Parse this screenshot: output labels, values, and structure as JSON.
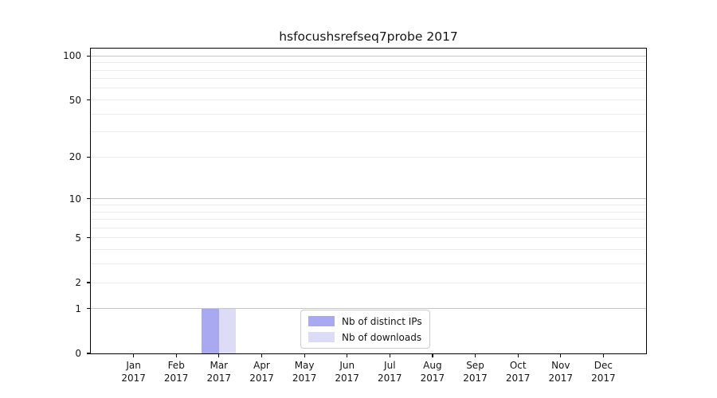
{
  "figure": {
    "background": "#ffffff",
    "text_color": "#151515",
    "axis_color": "#000000"
  },
  "chart_data": {
    "type": "bar",
    "title": "hsfocushsrefseq7probe 2017",
    "categories": [
      "Jan",
      "Feb",
      "Mar",
      "Apr",
      "May",
      "Jun",
      "Jul",
      "Aug",
      "Sep",
      "Oct",
      "Nov",
      "Dec"
    ],
    "category_year": "2017",
    "series": [
      {
        "name": "Nb of distinct IPs",
        "color": "#a9a9f2",
        "values": [
          0,
          0,
          1,
          0,
          0,
          0,
          0,
          0,
          0,
          0,
          0,
          0
        ]
      },
      {
        "name": "Nb of downloads",
        "color": "#dcdcf7",
        "values": [
          0,
          0,
          1,
          0,
          0,
          0,
          0,
          0,
          0,
          0,
          0,
          0
        ]
      }
    ],
    "xlabel": "",
    "ylabel": "",
    "y_scale": "log1p",
    "ylim": [
      0,
      112
    ],
    "y_major_ticks": [
      0,
      1,
      2,
      5,
      10,
      20,
      50,
      100
    ],
    "y_minor_gridlines": [
      3,
      4,
      6,
      7,
      8,
      9,
      30,
      40,
      60,
      70,
      80,
      90
    ],
    "y_emphasized_gridlines": [
      1,
      10,
      100
    ],
    "grid": "horizontal",
    "grid_major_color": "#c6c6c6",
    "grid_minor_color": "#ebebeb",
    "legend_position": "lower center"
  }
}
